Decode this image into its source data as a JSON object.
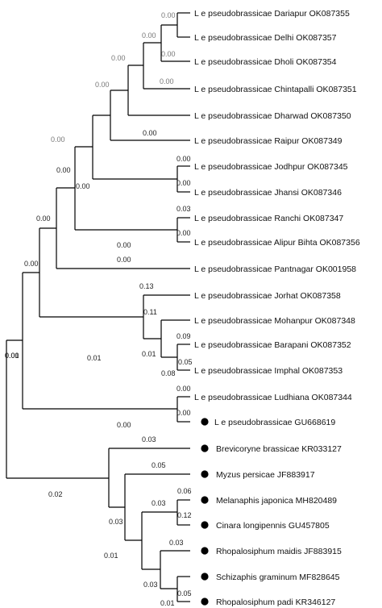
{
  "leaves": [
    {
      "label": "L e pseudobrassicae Dariapur OK087355",
      "marked": false
    },
    {
      "label": "L e pseudobrassicae Delhi OK087357",
      "marked": false
    },
    {
      "label": "L e pseudobrassicae Dholi OK087354",
      "marked": false
    },
    {
      "label": "L e pseudobrassicae Chintapalli OK087351",
      "marked": false
    },
    {
      "label": "L e pseudobrassicae Dharwad OK087350",
      "marked": false
    },
    {
      "label": "L e pseudobrassicae Raipur OK087349",
      "marked": false
    },
    {
      "label": "L e pseudobrassicae Jodhpur OK087345",
      "marked": false
    },
    {
      "label": "L e pseudobrassicae Jhansi OK087346",
      "marked": false
    },
    {
      "label": "L e pseudobrassicae Ranchi OK087347",
      "marked": false
    },
    {
      "label": "L e pseudobrassicae Alipur Bihta OK087356",
      "marked": false
    },
    {
      "label": "L e pseudobrassicae Pantnagar OK001958",
      "marked": false
    },
    {
      "label": "L e pseudobrassicae Jorhat OK087358",
      "marked": false
    },
    {
      "label": "L e pseudobrassicae Mohanpur OK087348",
      "marked": false
    },
    {
      "label": "L e pseudobrassicae Barapani OK087352",
      "marked": false
    },
    {
      "label": "L e pseudobrassicae Imphal OK087353",
      "marked": false
    },
    {
      "label": "L e pseudobrassicae Ludhiana OK087344",
      "marked": false
    },
    {
      "label": "L e pseudobrassicae GU668619",
      "marked": true
    },
    {
      "label": "Brevicoryne brassicae KR033127",
      "marked": true
    },
    {
      "label": "Myzus persicae JF883917",
      "marked": true
    },
    {
      "label": "Melanaphis japonica MH820489",
      "marked": true
    },
    {
      "label": "Cinara longipennis GU457805",
      "marked": true
    },
    {
      "label": "Rhopalosiphum maidis JF883915",
      "marked": true
    },
    {
      "label": "Schizaphis graminum MF828645",
      "marked": true
    },
    {
      "label": "Rhopalosiphum padi KR346127",
      "marked": true
    }
  ],
  "branch_lengths": [
    {
      "value": "0.00",
      "style": "grey"
    },
    {
      "value": "0.00",
      "style": "grey"
    },
    {
      "value": "0.00",
      "style": "grey"
    },
    {
      "value": "0.00",
      "style": "grey"
    },
    {
      "value": "0.00",
      "style": "grey"
    },
    {
      "value": "0.00",
      "style": "grey"
    },
    {
      "value": "0.00",
      "style": "grey"
    },
    {
      "value": "0.00",
      "style": "normal"
    },
    {
      "value": "0.00",
      "style": "normal"
    },
    {
      "value": "0.00",
      "style": "normal"
    },
    {
      "value": "0.00",
      "style": "normal"
    },
    {
      "value": "0.00",
      "style": "normal"
    },
    {
      "value": "0.00",
      "style": "normal"
    },
    {
      "value": "0.00",
      "style": "normal"
    },
    {
      "value": "0.03",
      "style": "normal"
    },
    {
      "value": "0.00",
      "style": "normal"
    },
    {
      "value": "0.00",
      "style": "normal"
    },
    {
      "value": "0.00",
      "style": "normal"
    },
    {
      "value": "0.00",
      "style": "normal"
    },
    {
      "value": "0.13",
      "style": "normal"
    },
    {
      "value": "0.11",
      "style": "normal"
    },
    {
      "value": "0.09",
      "style": "normal"
    },
    {
      "value": "0.01",
      "style": "normal"
    },
    {
      "value": "0.05",
      "style": "normal"
    },
    {
      "value": "0.08",
      "style": "normal"
    },
    {
      "value": "0.00",
      "style": "normal"
    },
    {
      "value": "0.00",
      "style": "normal"
    },
    {
      "value": "0.00",
      "style": "normal"
    },
    {
      "value": "0.01",
      "style": "normal"
    },
    {
      "value": "0.01",
      "style": "normal"
    },
    {
      "value": "0.03",
      "style": "normal"
    },
    {
      "value": "0.05",
      "style": "normal"
    },
    {
      "value": "0.02",
      "style": "normal"
    },
    {
      "value": "0.06",
      "style": "normal"
    },
    {
      "value": "0.03",
      "style": "normal"
    },
    {
      "value": "0.12",
      "style": "normal"
    },
    {
      "value": "0.03",
      "style": "normal"
    },
    {
      "value": "0.03",
      "style": "normal"
    },
    {
      "value": "0.01",
      "style": "normal"
    },
    {
      "value": "0.03",
      "style": "normal"
    },
    {
      "value": "0.05",
      "style": "normal"
    },
    {
      "value": "0.01",
      "style": "normal"
    }
  ]
}
